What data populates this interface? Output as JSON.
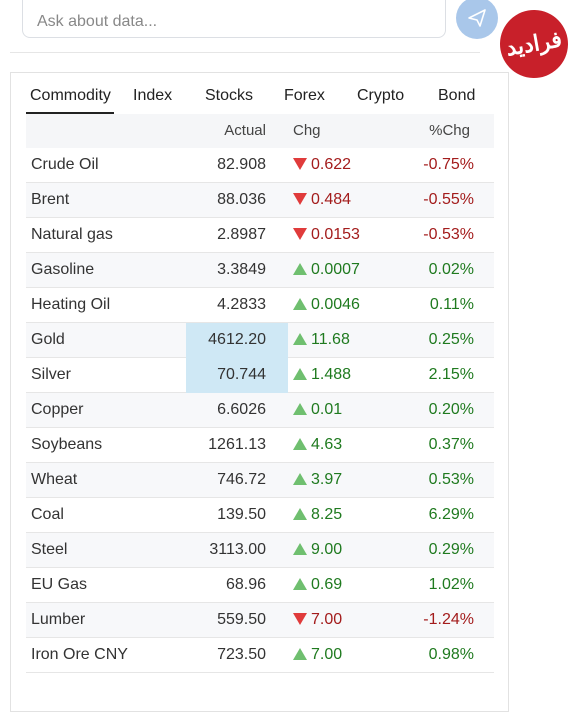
{
  "search": {
    "placeholder": "Ask about data..."
  },
  "watermark": "فرادید",
  "tabs": [
    "Commodity",
    "Index",
    "Stocks",
    "Forex",
    "Crypto",
    "Bond"
  ],
  "active_tab": 0,
  "table": {
    "columns": [
      "Actual",
      "Chg",
      "%Chg"
    ],
    "rows": [
      {
        "name": "Crude Oil",
        "actual": "82.908",
        "direction": "down",
        "chg": "0.622",
        "pct": "-0.75%"
      },
      {
        "name": "Brent",
        "actual": "88.036",
        "direction": "down",
        "chg": "0.484",
        "pct": "-0.55%"
      },
      {
        "name": "Natural gas",
        "actual": "2.8987",
        "direction": "down",
        "chg": "0.0153",
        "pct": "-0.53%"
      },
      {
        "name": "Gasoline",
        "actual": "3.3849",
        "direction": "up",
        "chg": "0.0007",
        "pct": "0.02%"
      },
      {
        "name": "Heating Oil",
        "actual": "4.2833",
        "direction": "up",
        "chg": "0.0046",
        "pct": "0.11%"
      },
      {
        "name": "Gold",
        "actual": "4612.20",
        "direction": "up",
        "chg": "11.68",
        "pct": "0.25%",
        "highlight": true
      },
      {
        "name": "Silver",
        "actual": "70.744",
        "direction": "up",
        "chg": "1.488",
        "pct": "2.15%",
        "highlight": true
      },
      {
        "name": "Copper",
        "actual": "6.6026",
        "direction": "up",
        "chg": "0.01",
        "pct": "0.20%"
      },
      {
        "name": "Soybeans",
        "actual": "1261.13",
        "direction": "up",
        "chg": "4.63",
        "pct": "0.37%"
      },
      {
        "name": "Wheat",
        "actual": "746.72",
        "direction": "up",
        "chg": "3.97",
        "pct": "0.53%"
      },
      {
        "name": "Coal",
        "actual": "139.50",
        "direction": "up",
        "chg": "8.25",
        "pct": "6.29%"
      },
      {
        "name": "Steel",
        "actual": "3113.00",
        "direction": "up",
        "chg": "9.00",
        "pct": "0.29%"
      },
      {
        "name": "EU Gas",
        "actual": "68.96",
        "direction": "up",
        "chg": "0.69",
        "pct": "1.02%"
      },
      {
        "name": "Lumber",
        "actual": "559.50",
        "direction": "down",
        "chg": "7.00",
        "pct": "-1.24%"
      },
      {
        "name": "Iron Ore CNY",
        "actual": "723.50",
        "direction": "up",
        "chg": "7.00",
        "pct": "0.98%"
      }
    ]
  }
}
